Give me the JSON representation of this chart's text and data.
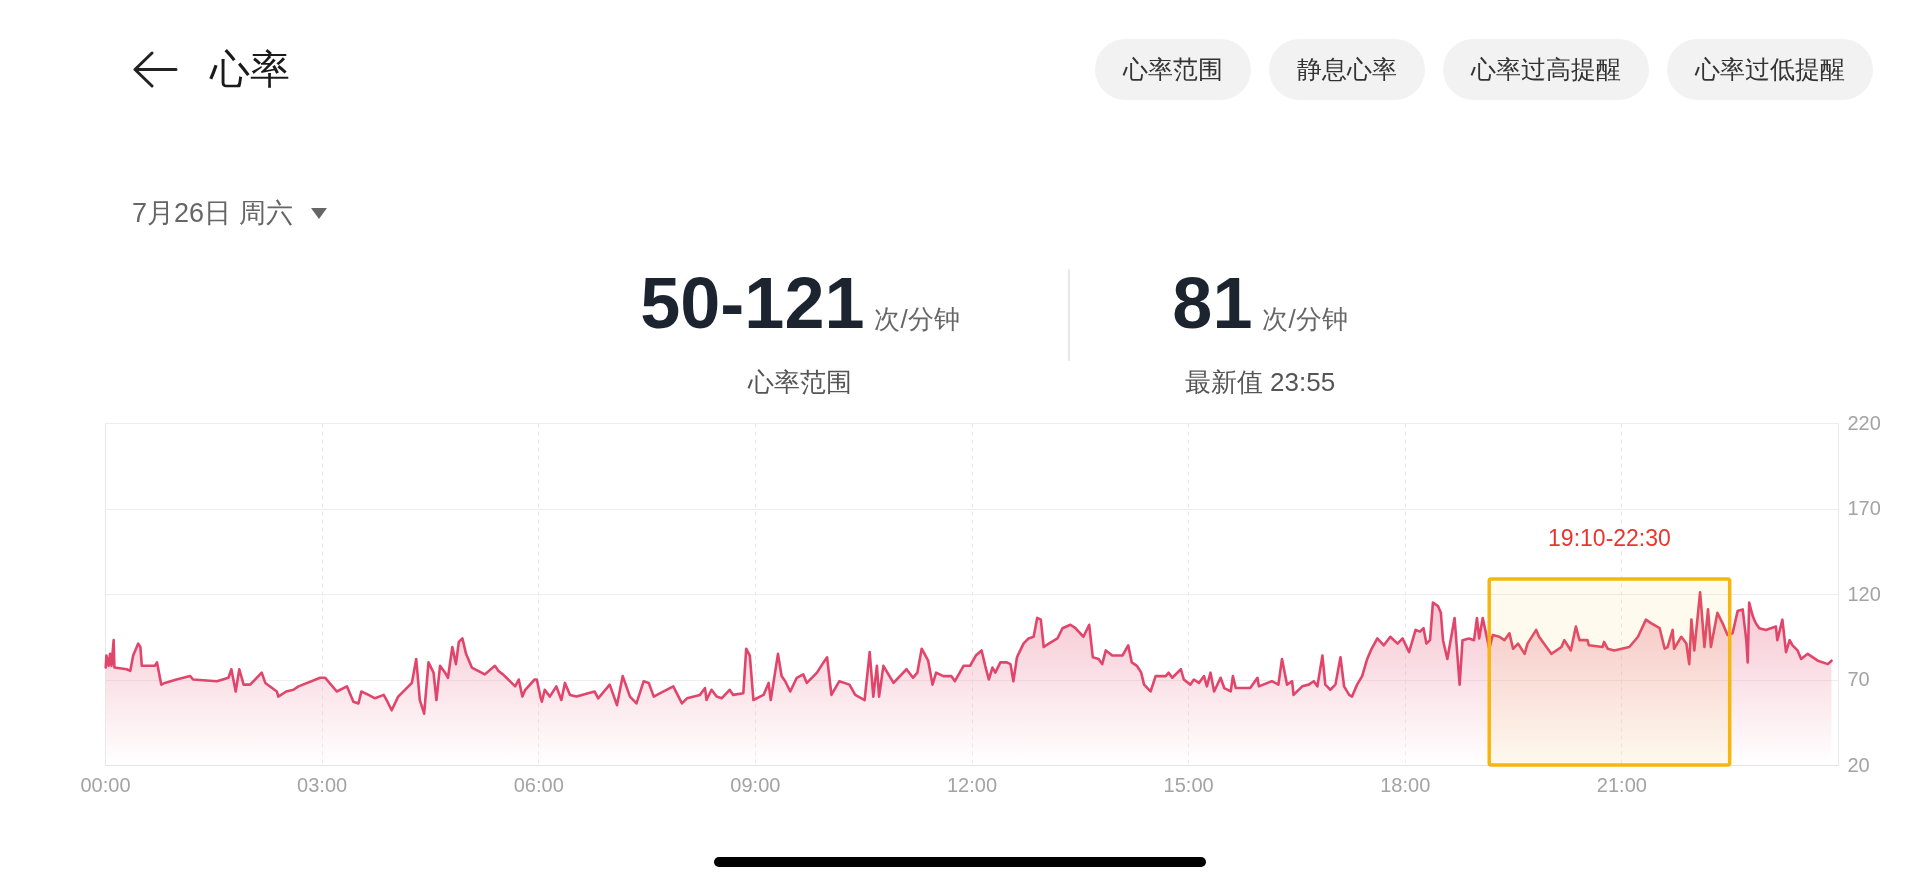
{
  "chart_data": {
    "type": "area",
    "title": "心率",
    "subtitle": "7月26日 周六",
    "annotations": [
      "心率范围",
      "静息心率",
      "心率过高提醒",
      "心率过低提醒",
      "50-121",
      "次/分钟",
      "心率范围",
      "81",
      "次/分钟",
      "最新值 23:55"
    ],
    "x": [
      0.01,
      0.02,
      0.05,
      0.07,
      0.09,
      0.12,
      0.13,
      0.3,
      0.35,
      0.39,
      0.46,
      0.49,
      0.51,
      0.69,
      0.72,
      0.78,
      0.83,
      0.99,
      1.18,
      1.22,
      1.55,
      1.71,
      1.75,
      1.81,
      1.86,
      1.92,
      2.01,
      2.17,
      2.22,
      2.38,
      2.4,
      2.51,
      2.61,
      2.68,
      2.98,
      3.05,
      3.21,
      3.35,
      3.44,
      3.51,
      3.55,
      3.65,
      3.74,
      3.86,
      3.9,
      3.97,
      4.06,
      4.25,
      4.31,
      4.36,
      4.42,
      4.48,
      4.55,
      4.59,
      4.64,
      4.71,
      4.75,
      4.81,
      4.86,
      4.9,
      4.95,
      5.0,
      5.08,
      5.26,
      5.4,
      5.45,
      5.51,
      5.56,
      5.68,
      5.73,
      5.78,
      5.82,
      5.95,
      5.98,
      6.03,
      6.05,
      6.09,
      6.16,
      6.25,
      6.32,
      6.37,
      6.44,
      6.53,
      6.78,
      6.83,
      6.99,
      7.09,
      7.17,
      7.27,
      7.36,
      7.46,
      7.53,
      7.6,
      7.69,
      7.87,
      7.99,
      8.06,
      8.24,
      8.31,
      8.33,
      8.4,
      8.47,
      8.54,
      8.65,
      8.7,
      8.84,
      8.88,
      8.93,
      8.98,
      9.12,
      9.19,
      9.22,
      9.32,
      9.37,
      9.42,
      9.49,
      9.58,
      9.67,
      9.72,
      9.86,
      9.95,
      10.0,
      10.06,
      10.17,
      10.31,
      10.39,
      10.52,
      10.59,
      10.64,
      10.69,
      10.72,
      10.78,
      10.92,
      11.1,
      11.19,
      11.25,
      11.31,
      11.4,
      11.46,
      11.51,
      11.61,
      11.72,
      11.77,
      11.89,
      11.98,
      12.06,
      12.14,
      12.19,
      12.24,
      12.29,
      12.33,
      12.4,
      12.49,
      12.54,
      12.58,
      12.63,
      12.72,
      12.79,
      12.86,
      12.91,
      12.96,
      13.0,
      13.07,
      13.19,
      13.26,
      13.37,
      13.44,
      13.55,
      13.63,
      13.68,
      13.76,
      13.81,
      13.86,
      13.95,
      14.09,
      14.17,
      14.22,
      14.29,
      14.35,
      14.39,
      14.48,
      14.55,
      14.69,
      14.73,
      14.78,
      14.9,
      14.94,
      15.03,
      15.08,
      15.15,
      15.22,
      15.26,
      15.31,
      15.36,
      15.45,
      15.5,
      15.59,
      15.62,
      15.66,
      15.86,
      15.96,
      15.98,
      16.16,
      16.25,
      16.3,
      16.37,
      16.44,
      16.46,
      16.58,
      16.67,
      16.74,
      16.79,
      16.86,
      16.9,
      16.97,
      17.04,
      17.11,
      17.16,
      17.23,
      17.27,
      17.34,
      17.41,
      17.48,
      17.53,
      17.62,
      17.71,
      17.8,
      17.9,
      17.97,
      18.06,
      18.15,
      18.21,
      18.26,
      18.3,
      18.35,
      18.39,
      18.46,
      18.5,
      18.53,
      18.59,
      18.69,
      18.76,
      18.8,
      18.89,
      18.96,
      19.0,
      19.03,
      19.08,
      19.17,
      19.22,
      19.31,
      19.38,
      19.45,
      19.5,
      19.57,
      19.66,
      19.7,
      19.82,
      19.86,
      20.03,
      20.17,
      20.21,
      20.3,
      20.37,
      20.42,
      20.53,
      20.55,
      20.74,
      20.76,
      20.81,
      20.9,
      21.11,
      21.23,
      21.34,
      21.41,
      21.53,
      21.6,
      21.64,
      21.71,
      21.73,
      21.83,
      21.9,
      21.94,
      21.97,
      22.01,
      22.09,
      22.11,
      22.15,
      22.2,
      22.24,
      22.33,
      22.4,
      22.47,
      22.54,
      22.61,
      22.68,
      22.73,
      22.75,
      22.77,
      22.82,
      22.86,
      22.91,
      23.0,
      23.14,
      23.16,
      23.23,
      23.28,
      23.33,
      23.37,
      23.44,
      23.49,
      23.58,
      23.72,
      23.86,
      23.91
    ],
    "series": [
      {
        "color": "#e2456b",
        "values": [
          77,
          84,
          78,
          85,
          78,
          93,
          77,
          76,
          75,
          84,
          91,
          89,
          78,
          78,
          80,
          67,
          68,
          70,
          72,
          70,
          69,
          71,
          76,
          63,
          76,
          67,
          67,
          74,
          68,
          63,
          60,
          63,
          64,
          66,
          71,
          71,
          63,
          66,
          57,
          56,
          63,
          61,
          59,
          61,
          58,
          52,
          60,
          68,
          82,
          58,
          50,
          80,
          74,
          58,
          78,
          74,
          71,
          89,
          79,
          92,
          94,
          85,
          77,
          73,
          78,
          75,
          73,
          71,
          66,
          70,
          60,
          64,
          70,
          70,
          60,
          57,
          64,
          60,
          66,
          58,
          68,
          61,
          60,
          63,
          59,
          67,
          55,
          72,
          60,
          56,
          69,
          68,
          60,
          62,
          66,
          56,
          59,
          61,
          65,
          58,
          64,
          60,
          59,
          64,
          61,
          62,
          88,
          84,
          58,
          61,
          68,
          58,
          85,
          72,
          69,
          63,
          71,
          73,
          68,
          74,
          80,
          83,
          61,
          69,
          67,
          61,
          58,
          86,
          60,
          78,
          60,
          78,
          68,
          76,
          71,
          74,
          88,
          81,
          67,
          74,
          72,
          72,
          69,
          78,
          78,
          84,
          87,
          78,
          70,
          77,
          74,
          80,
          80,
          79,
          69,
          83,
          91,
          94,
          95,
          106,
          105,
          89,
          91,
          94,
          100,
          102,
          100,
          95,
          102,
          83,
          82,
          79,
          87,
          84,
          84,
          90,
          80,
          78,
          74,
          67,
          63,
          72,
          72,
          74,
          71,
          76,
          70,
          67,
          70,
          68,
          72,
          66,
          74,
          63,
          71,
          65,
          63,
          72,
          65,
          65,
          71,
          66,
          69,
          67,
          82,
          67,
          69,
          61,
          66,
          67,
          69,
          66,
          84,
          67,
          64,
          67,
          83,
          66,
          61,
          60,
          67,
          72,
          82,
          87,
          94,
          90,
          95,
          91,
          94,
          86,
          99,
          98,
          100,
          91,
          93,
          115,
          113,
          109,
          93,
          82,
          106,
          67,
          93,
          94,
          93,
          106,
          94,
          106,
          88,
          96,
          95,
          93,
          97,
          88,
          91,
          85,
          91,
          99,
          95,
          85,
          89,
          93,
          87,
          101,
          93,
          93,
          90,
          89,
          92,
          88,
          87,
          89,
          95,
          105,
          103,
          100,
          88,
          89,
          99,
          88,
          95,
          91,
          79,
          105,
          87,
          121,
          111,
          89,
          111,
          89,
          109,
          103,
          96,
          97,
          110,
          111,
          93,
          80,
          115,
          107,
          103,
          100,
          99,
          101,
          93,
          105,
          86,
          93,
          90,
          87,
          82,
          85,
          81,
          79,
          81
        ]
      }
    ],
    "xlim": [
      0,
      24
    ],
    "xticks": [
      {
        "value": 0,
        "label": "00:00"
      },
      {
        "value": 3,
        "label": "03:00"
      },
      {
        "value": 6,
        "label": "06:00"
      },
      {
        "value": 9,
        "label": "09:00"
      },
      {
        "value": 12,
        "label": "12:00"
      },
      {
        "value": 15,
        "label": "15:00"
      },
      {
        "value": 18,
        "label": "18:00"
      },
      {
        "value": 21,
        "label": "21:00"
      }
    ],
    "ylim": [
      20,
      220
    ],
    "yticks": [
      20,
      70,
      120,
      170,
      220
    ],
    "bands": [
      {
        "axis": "x",
        "from": 19.17,
        "to": 22.5,
        "label": "19:10-22:30",
        "color": "#f6b60f"
      }
    ],
    "grid": true
  }
}
